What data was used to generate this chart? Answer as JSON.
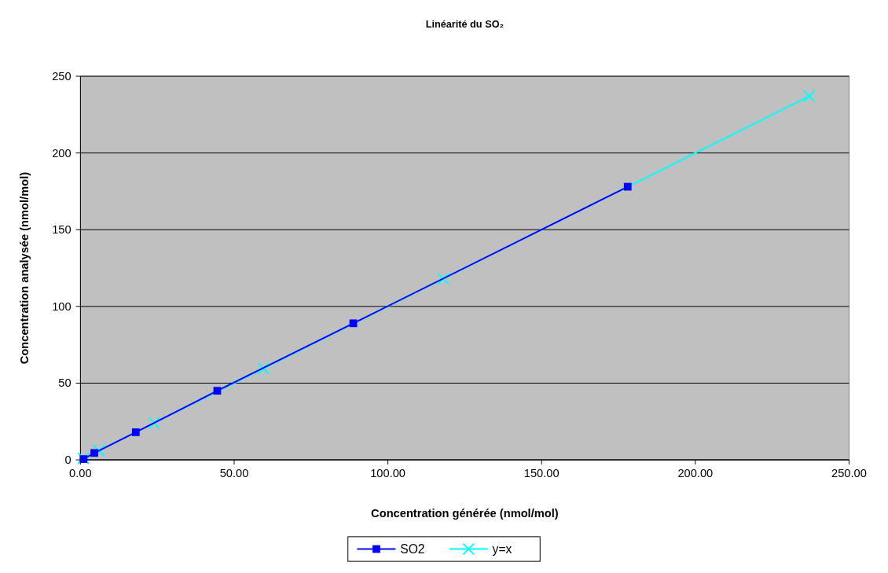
{
  "chart_data": {
    "type": "line",
    "title": "Linéarité du SO₂",
    "xlabel": "Concentration générée (nmol/mol)",
    "ylabel": "Concentration analysée (nmol/mol)",
    "xlim": [
      0,
      250
    ],
    "xticks": [
      {
        "value": 0,
        "label": "0.00"
      },
      {
        "value": 50,
        "label": "50.00"
      },
      {
        "value": 100,
        "label": "100.00"
      },
      {
        "value": 150,
        "label": "150.00"
      },
      {
        "value": 200,
        "label": "200.00"
      },
      {
        "value": 250,
        "label": "250.00"
      }
    ],
    "ylim": [
      0,
      250
    ],
    "yticks": [
      0,
      50,
      100,
      150,
      200,
      250
    ],
    "grid": "y",
    "legend": "bottom",
    "line_style": "solid",
    "series": [
      {
        "name": "SO2",
        "color": "#0000ff",
        "marker": "square",
        "x": [
          1,
          4.5,
          18,
          44.5,
          88.75,
          178
        ],
        "values": [
          0.5,
          4.5,
          18,
          45,
          89,
          178
        ]
      },
      {
        "name": "y=x",
        "color": "#00ffff",
        "marker": "cross",
        "x": [
          1,
          6,
          24,
          59.5,
          118,
          237
        ],
        "values": [
          1,
          6,
          24,
          59.5,
          118,
          237
        ]
      }
    ]
  }
}
